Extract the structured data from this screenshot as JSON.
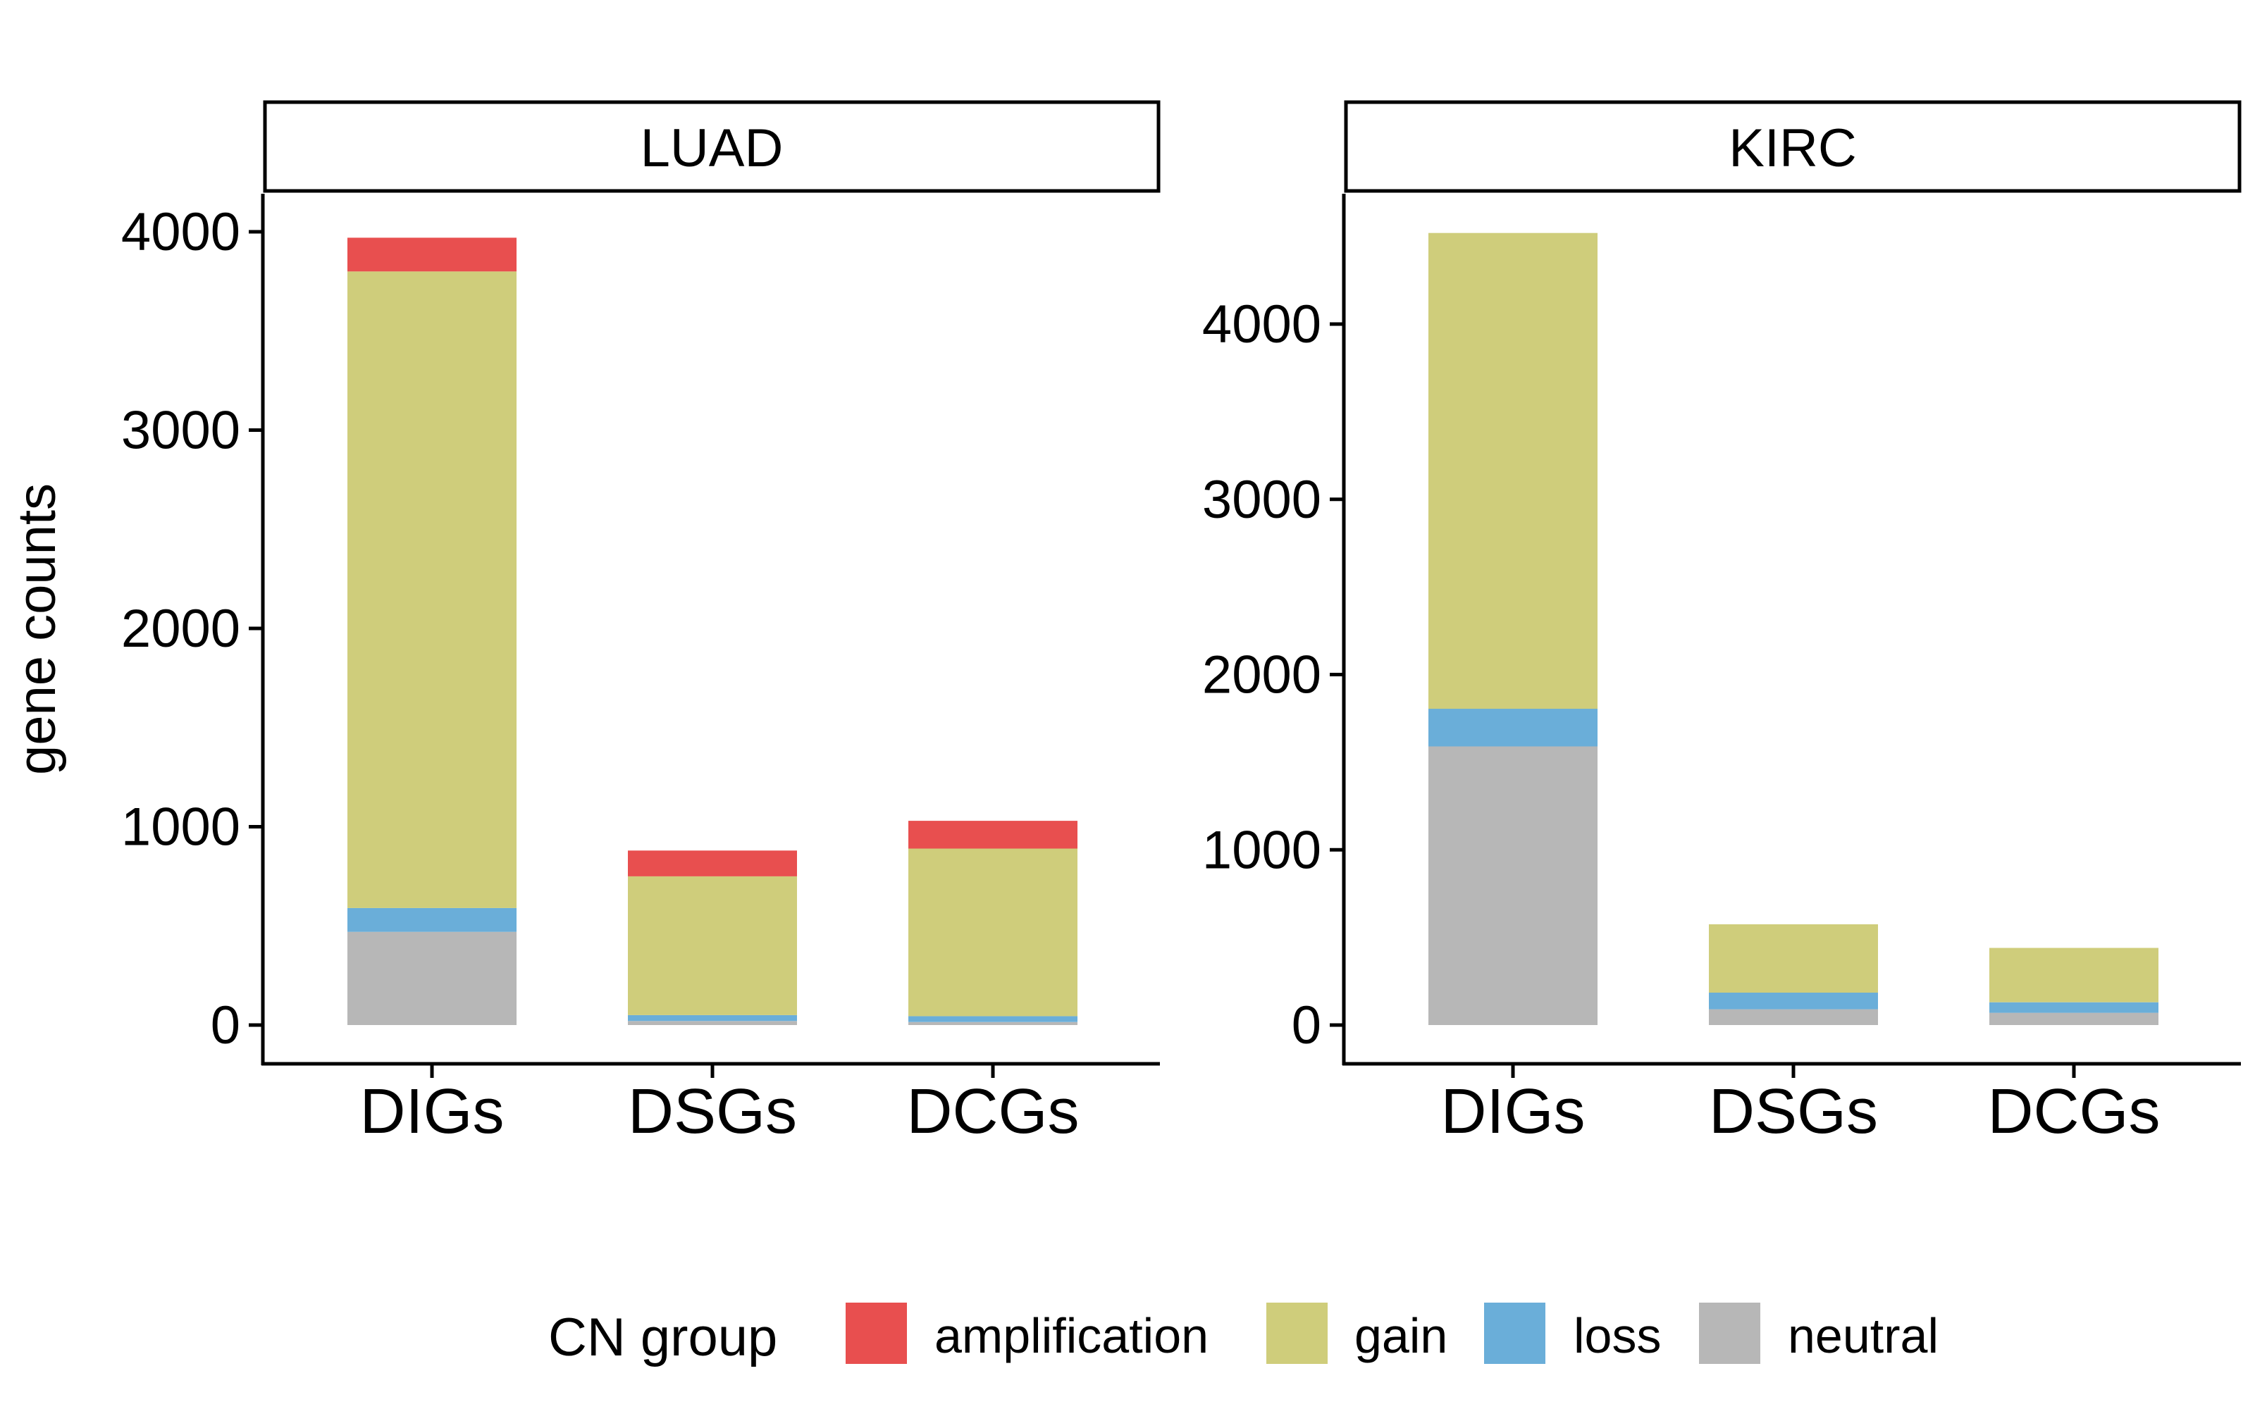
{
  "chart_data": {
    "type": "bar",
    "stacked": true,
    "ylabel": "gene counts",
    "categories": [
      "DIGs",
      "DSGs",
      "DCGs"
    ],
    "legend": {
      "title": "CN group",
      "position": "bottom",
      "entries": [
        "amplification",
        "gain",
        "loss",
        "neutral"
      ]
    },
    "colors": {
      "amplification": "#e84f4f",
      "gain": "#cfcd7b",
      "loss": "#6aaed9",
      "neutral": "#b7b7b7"
    },
    "stack_order": [
      "neutral",
      "loss",
      "gain",
      "amplification"
    ],
    "panels": [
      {
        "title": "LUAD",
        "ylim": [
          0,
          4150
        ],
        "yticks": [
          0,
          1000,
          2000,
          3000,
          4000
        ],
        "ytick_labels": [
          "0",
          "1000",
          "2000",
          "3000",
          "4000"
        ],
        "series": [
          {
            "name": "neutral",
            "values": [
              470,
              20,
              15
            ]
          },
          {
            "name": "loss",
            "values": [
              120,
              30,
              30
            ]
          },
          {
            "name": "gain",
            "values": [
              3210,
              700,
              845
            ]
          },
          {
            "name": "amplification",
            "values": [
              170,
              130,
              140
            ]
          }
        ]
      },
      {
        "title": "KIRC",
        "ylim": [
          0,
          4720
        ],
        "yticks": [
          0,
          1000,
          2000,
          3000,
          4000
        ],
        "ytick_labels": [
          "0",
          "1000",
          "2000",
          "3000",
          "4000"
        ],
        "series": [
          {
            "name": "neutral",
            "values": [
              1590,
              90,
              70
            ]
          },
          {
            "name": "loss",
            "values": [
              215,
              95,
              60
            ]
          },
          {
            "name": "gain",
            "values": [
              2715,
              390,
              310
            ]
          },
          {
            "name": "amplification",
            "values": [
              0,
              0,
              0
            ]
          }
        ]
      }
    ]
  }
}
